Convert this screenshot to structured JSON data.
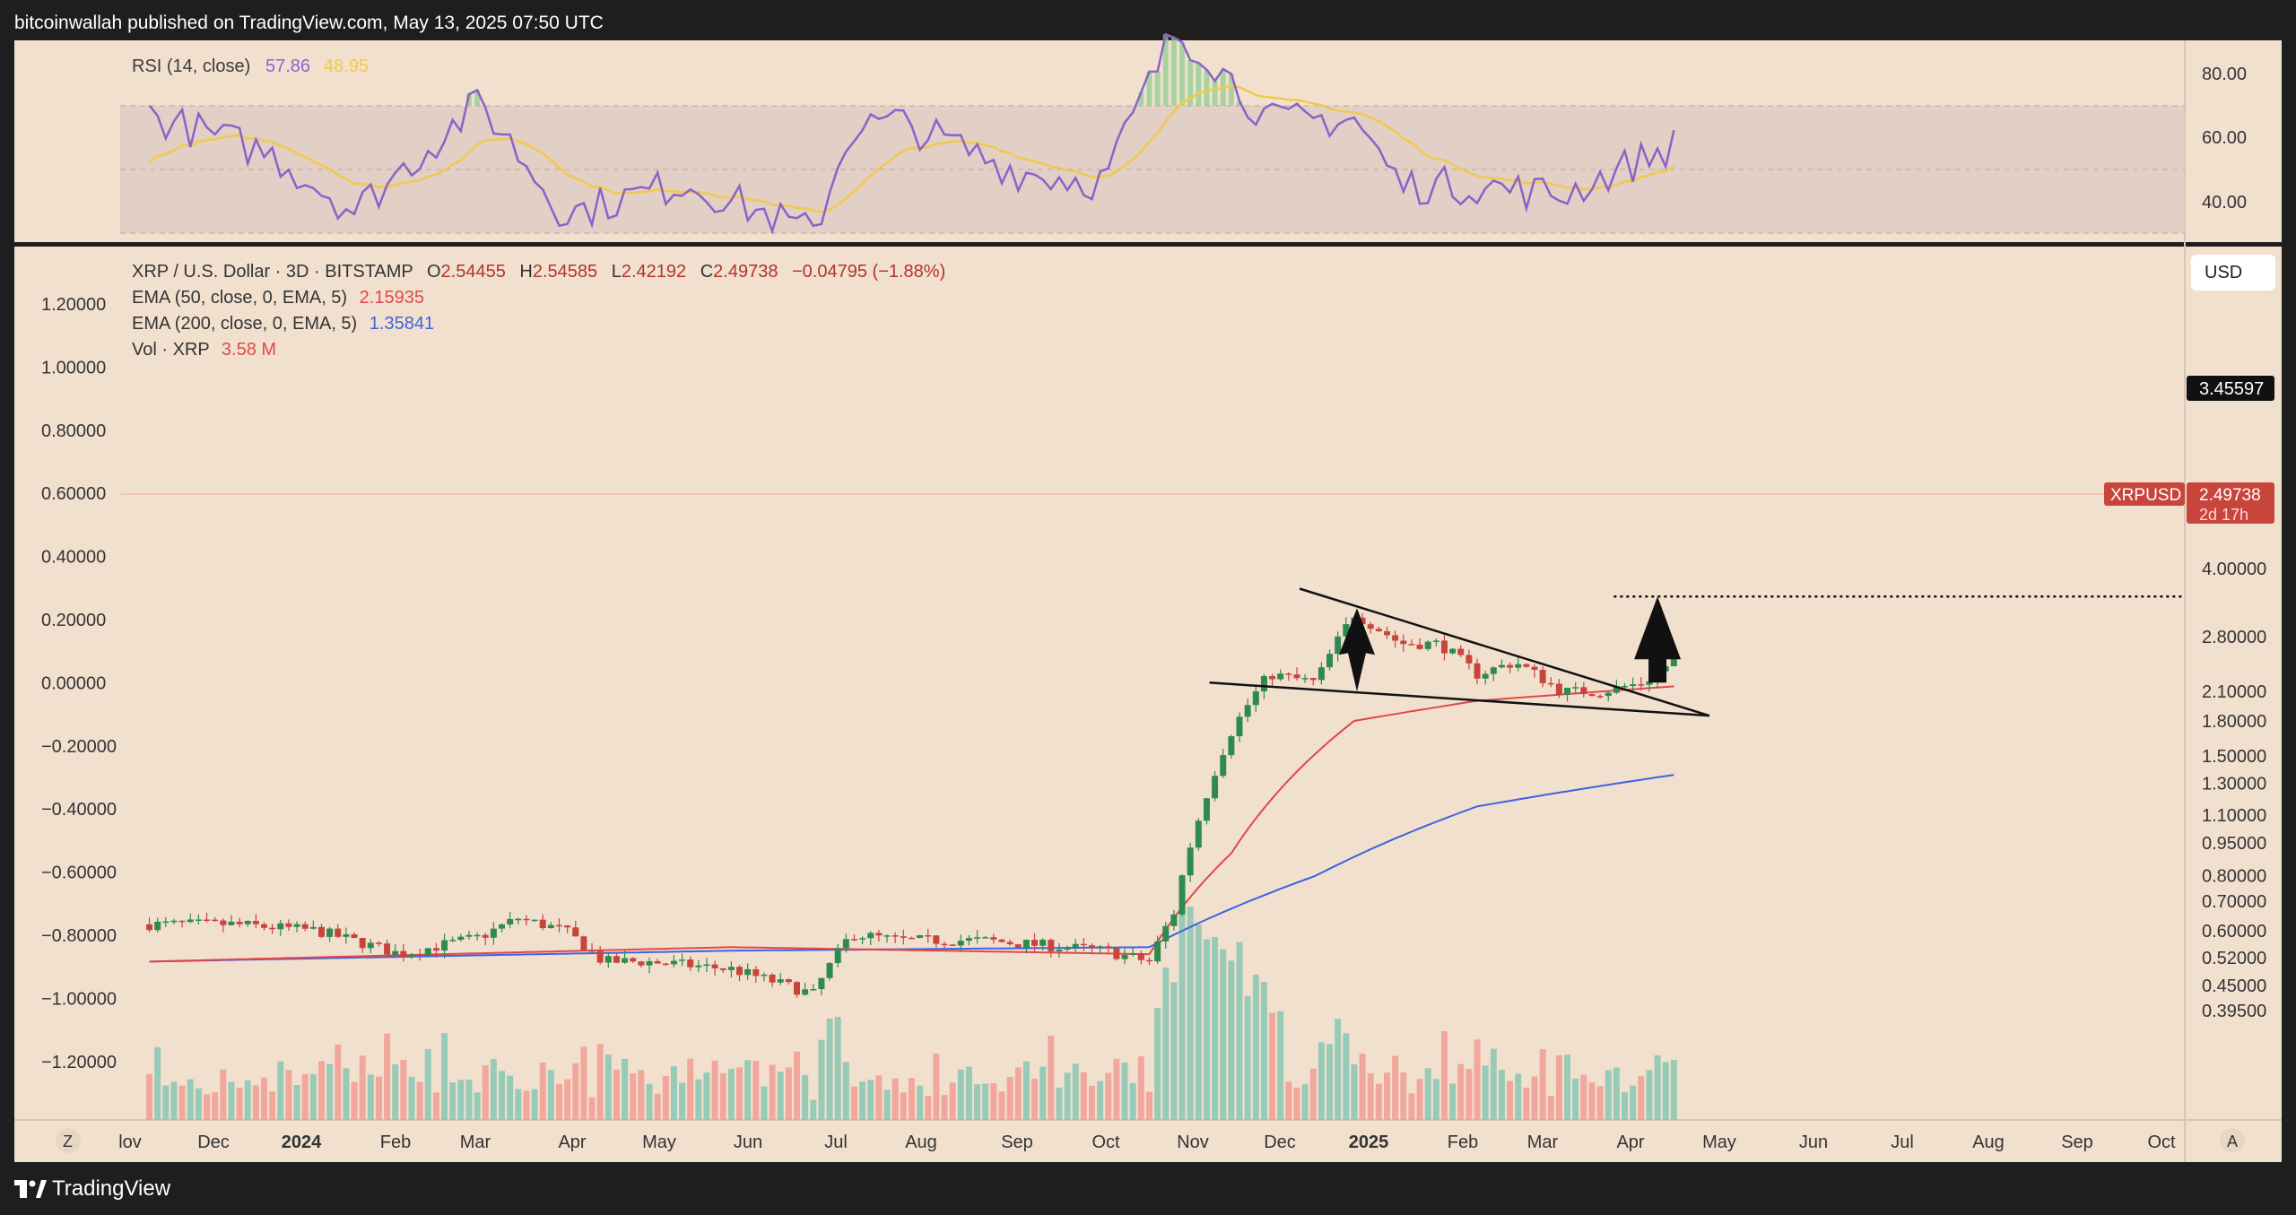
{
  "header": {
    "publisher_line": "bitcoinwallah published on TradingView.com, May 13, 2025 07:50 UTC"
  },
  "footer": {
    "brand": "TradingView"
  },
  "rsi_panel": {
    "title": "RSI (14, close)",
    "value_rsi": "57.86",
    "value_ma": "48.95",
    "right_ticks": [
      "80.00",
      "60.00",
      "40.00"
    ]
  },
  "main_panel": {
    "symbol_line": "XRP / U.S. Dollar · 3D · BITSTAMP",
    "open_label": "O",
    "open": "2.54455",
    "high_label": "H",
    "high": "2.54585",
    "low_label": "L",
    "low": "2.42192",
    "close_label": "C",
    "close": "2.49738",
    "change": "−0.04795 (−1.88%)",
    "ema50_label": "EMA (50, close, 0, EMA, 5)",
    "ema50_value": "2.15935",
    "ema200_label": "EMA (200, close, 0, EMA, 5)",
    "ema200_value": "1.35841",
    "vol_label": "Vol · XRP",
    "vol_value": "3.58 M",
    "currency_button": "USD",
    "left_ticks": [
      "1.20000",
      "1.00000",
      "0.80000",
      "0.60000",
      "0.40000",
      "0.20000",
      "0.00000",
      "−0.20000",
      "−0.40000",
      "−0.60000",
      "−0.80000",
      "−1.00000",
      "−1.20000"
    ],
    "right_ticks": [
      "4.00000",
      "2.80000",
      "2.10000",
      "1.80000",
      "1.50000",
      "1.30000",
      "1.10000",
      "0.95000",
      "0.80000",
      "0.70000",
      "0.60000",
      "0.52000",
      "0.45000",
      "0.39500"
    ],
    "target_label": "3.45597",
    "price_tag_symbol": "XRPUSD",
    "price_tag_value": "2.49738",
    "price_tag_countdown": "2d 17h"
  },
  "time_axis": {
    "labels": [
      "lov",
      "Dec",
      "2024",
      "Feb",
      "Mar",
      "Apr",
      "May",
      "Jun",
      "Jul",
      "Aug",
      "Sep",
      "Oct",
      "Nov",
      "Dec",
      "2025",
      "Feb",
      "Mar",
      "Apr",
      "May",
      "Jun",
      "Jul",
      "Aug",
      "Sep",
      "Oct"
    ],
    "zoom_button": "Z",
    "auto_button": "A"
  },
  "chart_data": {
    "type": "candlestick",
    "symbol": "XRP / U.S. Dollar",
    "interval": "3D",
    "exchange": "BITSTAMP",
    "y_scale": "log",
    "price_axis_range": [
      0.395,
      4.0
    ],
    "x_range": [
      "2023-11-01",
      "2025-10-31"
    ],
    "grid": false,
    "ohlc_last": {
      "open": 2.54455,
      "high": 2.54585,
      "low": 2.42192,
      "close": 2.49738,
      "change": -0.04795,
      "change_pct": -1.88
    },
    "close_series": {
      "x": [
        "2023-11-01",
        "2023-12-01",
        "2024-01-01",
        "2024-02-01",
        "2024-03-01",
        "2024-03-15",
        "2024-04-01",
        "2024-04-15",
        "2024-05-01",
        "2024-06-01",
        "2024-07-01",
        "2024-07-15",
        "2024-08-01",
        "2024-09-01",
        "2024-10-01",
        "2024-10-15",
        "2024-11-01",
        "2024-11-10",
        "2024-11-20",
        "2024-12-01",
        "2024-12-15",
        "2025-01-01",
        "2025-01-15",
        "2025-02-01",
        "2025-02-15",
        "2025-03-01",
        "2025-03-15",
        "2025-04-01",
        "2025-04-15",
        "2025-05-01",
        "2025-05-13"
      ],
      "close": [
        0.62,
        0.62,
        0.6,
        0.53,
        0.58,
        0.64,
        0.6,
        0.51,
        0.51,
        0.49,
        0.43,
        0.59,
        0.57,
        0.57,
        0.55,
        0.54,
        0.51,
        0.66,
        1.12,
        1.7,
        2.3,
        2.2,
        3.15,
        2.7,
        2.7,
        2.3,
        2.45,
        2.1,
        2.1,
        2.2,
        2.5
      ]
    },
    "ema50": {
      "last": 2.15935,
      "x": [
        "2023-11-01",
        "2024-06-01",
        "2024-11-01",
        "2024-12-01",
        "2025-01-15",
        "2025-03-01",
        "2025-05-13"
      ],
      "y": [
        0.51,
        0.55,
        0.53,
        0.9,
        1.8,
        2.0,
        2.16
      ]
    },
    "ema200": {
      "last": 1.35841,
      "x": [
        "2023-11-01",
        "2024-06-01",
        "2024-11-01",
        "2025-01-01",
        "2025-03-01",
        "2025-05-13"
      ],
      "y": [
        0.51,
        0.54,
        0.55,
        0.8,
        1.15,
        1.36
      ]
    },
    "volume": {
      "last": "3.58 M"
    },
    "annotations": {
      "triangle_upper": {
        "from": [
          "2024-12-26",
          3.6
        ],
        "to": [
          "2025-05-25",
          1.85
        ]
      },
      "triangle_lower": {
        "from": [
          "2024-11-23",
          2.2
        ],
        "to": [
          "2025-05-25",
          1.85
        ]
      },
      "flagpole_arrow": {
        "base": [
          "2025-01-16",
          2.1
        ],
        "tip": [
          "2025-01-16",
          3.25
        ]
      },
      "projection_arrow": {
        "base": [
          "2025-05-06",
          2.2
        ],
        "tip": [
          "2025-05-06",
          3.45597
        ]
      },
      "target_level": 3.45597
    },
    "rsi": {
      "length": 14,
      "source": "close",
      "last": 57.86,
      "ma_last": 48.95,
      "levels": [
        70,
        50,
        30
      ],
      "x": [
        "2023-11-01",
        "2023-12-15",
        "2024-01-15",
        "2024-03-01",
        "2024-04-01",
        "2024-05-15",
        "2024-07-01",
        "2024-07-15",
        "2024-08-01",
        "2024-09-15",
        "2024-10-15",
        "2024-11-10",
        "2024-11-20",
        "2024-12-15",
        "2025-01-15",
        "2025-02-01",
        "2025-03-01",
        "2025-04-01",
        "2025-05-13"
      ],
      "y": [
        67,
        55,
        37,
        71,
        36,
        46,
        30,
        63,
        65,
        49,
        46,
        93,
        88,
        65,
        66,
        45,
        45,
        42,
        58
      ]
    }
  }
}
